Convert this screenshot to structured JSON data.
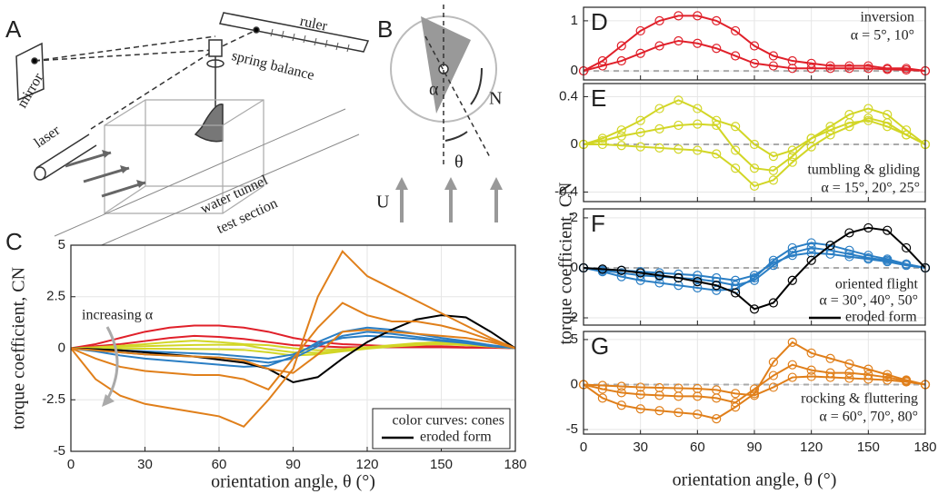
{
  "diagram": {
    "panel_A": "A",
    "panel_B": "B",
    "labels": [
      "ruler",
      "mirror",
      "spring balance",
      "laser",
      "water tunnel",
      "test section",
      "α",
      "N",
      "θ",
      "U"
    ]
  },
  "shared_y_label": "torque coefficient, CN",
  "chart_data": [
    {
      "type": "line",
      "panel": "C",
      "x_label": "orientation angle, θ (°)",
      "y_label": "torque coefficient, CN",
      "xlim": [
        0,
        180
      ],
      "xticks": [
        0,
        30,
        60,
        90,
        120,
        150,
        180
      ],
      "ylim": [
        -5,
        5
      ],
      "yticks": [
        -5,
        -2.5,
        0,
        2.5,
        5
      ],
      "grid": true,
      "annotations": [
        "increasing α"
      ],
      "legend": [
        "color curves: cones",
        "eroded form"
      ],
      "legend_position": "lower right"
    },
    {
      "type": "line",
      "panel": "D",
      "x": [
        0,
        10,
        20,
        30,
        40,
        50,
        60,
        70,
        80,
        90,
        100,
        110,
        120,
        130,
        140,
        150,
        160,
        170,
        180
      ],
      "xlim": [
        0,
        180
      ],
      "xticks": [
        0,
        30,
        60,
        90,
        120,
        150,
        180
      ],
      "show_xtick_labels": false,
      "ylim": [
        -0.18,
        1.27
      ],
      "yticks": [
        0,
        1
      ],
      "grid": true,
      "markers": true,
      "zero_line": true,
      "annotations": [
        "inversion",
        "α = 5°, 10°"
      ],
      "series": [
        {
          "color": "#e0202a",
          "values": [
            0,
            0.2,
            0.5,
            0.8,
            1.0,
            1.1,
            1.1,
            1.0,
            0.8,
            0.5,
            0.3,
            0.2,
            0.15,
            0.1,
            0.1,
            0.1,
            0.05,
            0.05,
            0
          ]
        },
        {
          "color": "#e0202a",
          "values": [
            0,
            0.1,
            0.2,
            0.35,
            0.5,
            0.6,
            0.55,
            0.45,
            0.3,
            0.15,
            0.1,
            0.05,
            0.05,
            0.05,
            0.05,
            0.05,
            0.03,
            0.02,
            0
          ]
        }
      ]
    },
    {
      "type": "line",
      "panel": "E",
      "x": [
        0,
        10,
        20,
        30,
        40,
        50,
        60,
        70,
        80,
        90,
        100,
        110,
        120,
        130,
        140,
        150,
        160,
        170,
        180
      ],
      "xlim": [
        0,
        180
      ],
      "xticks": [
        0,
        30,
        60,
        90,
        120,
        150,
        180
      ],
      "show_xtick_labels": false,
      "ylim": [
        -0.48,
        0.51
      ],
      "yticks": [
        -0.4,
        0,
        0.4
      ],
      "grid": true,
      "markers": true,
      "zero_line": true,
      "annotations": [
        "tumbling & gliding",
        "α = 15°, 20°, 25°"
      ],
      "series": [
        {
          "color": "#d2d626",
          "values": [
            0,
            0.05,
            0.12,
            0.2,
            0.3,
            0.37,
            0.3,
            0.2,
            0.15,
            0.0,
            -0.1,
            -0.05,
            0.05,
            0.15,
            0.25,
            0.3,
            0.25,
            0.12,
            0
          ]
        },
        {
          "color": "#d2d626",
          "values": [
            0,
            0.03,
            0.07,
            0.1,
            0.13,
            0.16,
            0.17,
            0.16,
            -0.05,
            -0.2,
            -0.22,
            -0.1,
            0.05,
            0.12,
            0.18,
            0.2,
            0.15,
            0.08,
            0
          ]
        },
        {
          "color": "#d2d626",
          "values": [
            0,
            0,
            -0.01,
            -0.02,
            -0.03,
            -0.04,
            -0.05,
            -0.08,
            -0.2,
            -0.35,
            -0.3,
            -0.15,
            -0.02,
            0.08,
            0.15,
            0.22,
            0.18,
            0.08,
            0
          ]
        }
      ]
    },
    {
      "type": "line",
      "panel": "F",
      "x": [
        0,
        10,
        20,
        30,
        40,
        50,
        60,
        70,
        80,
        90,
        100,
        110,
        120,
        130,
        140,
        150,
        160,
        170,
        180
      ],
      "xlim": [
        0,
        180
      ],
      "xticks": [
        0,
        30,
        60,
        90,
        120,
        150,
        180
      ],
      "show_xtick_labels": false,
      "ylim": [
        -2.29,
        2.36
      ],
      "yticks": [
        -2,
        0,
        2
      ],
      "grid": true,
      "markers": true,
      "zero_line": true,
      "annotations": [
        "oriented flight",
        "α = 30°, 40°, 50°"
      ],
      "series": [
        {
          "color": "#2a7ec4",
          "values": [
            0,
            -0.05,
            -0.1,
            -0.15,
            -0.2,
            -0.25,
            -0.3,
            -0.4,
            -0.5,
            -0.3,
            0.2,
            0.5,
            0.6,
            0.55,
            0.45,
            0.35,
            0.25,
            0.1,
            0
          ]
        },
        {
          "color": "#2a7ec4",
          "values": [
            0,
            -0.1,
            -0.2,
            -0.3,
            -0.35,
            -0.4,
            -0.45,
            -0.55,
            -0.7,
            -0.5,
            0.1,
            0.6,
            0.8,
            0.7,
            0.55,
            0.4,
            0.3,
            0.15,
            0
          ]
        },
        {
          "color": "#2a7ec4",
          "values": [
            0,
            -0.15,
            -0.35,
            -0.5,
            -0.6,
            -0.7,
            -0.8,
            -0.9,
            -0.85,
            -0.4,
            0.3,
            0.8,
            1.0,
            0.9,
            0.7,
            0.5,
            0.35,
            0.15,
            0
          ]
        },
        {
          "name": "eroded form",
          "color": "#000000",
          "values": [
            0,
            -0.05,
            -0.1,
            -0.2,
            -0.3,
            -0.4,
            -0.55,
            -0.7,
            -1.0,
            -1.65,
            -1.4,
            -0.5,
            0.3,
            0.9,
            1.4,
            1.6,
            1.5,
            0.8,
            0
          ]
        }
      ]
    },
    {
      "type": "line",
      "panel": "G",
      "x": [
        0,
        10,
        20,
        30,
        40,
        50,
        60,
        70,
        80,
        90,
        100,
        110,
        120,
        130,
        140,
        150,
        160,
        170,
        180
      ],
      "x_label": "orientation angle, θ (°)",
      "xlim": [
        0,
        180
      ],
      "xticks": [
        0,
        30,
        60,
        90,
        120,
        150,
        180
      ],
      "ylim": [
        -5.5,
        5.9
      ],
      "yticks": [
        -5,
        0,
        5
      ],
      "grid": true,
      "markers": true,
      "zero_line": true,
      "annotations": [
        "rocking & fluttering",
        "α = 60°, 70°, 80°"
      ],
      "series": [
        {
          "color": "#e07f1a",
          "values": [
            0,
            -0.1,
            -0.2,
            -0.3,
            -0.35,
            -0.4,
            -0.45,
            -0.6,
            -1.0,
            -1.2,
            -0.3,
            0.8,
            0.9,
            0.8,
            0.7,
            0.6,
            0.5,
            0.3,
            0
          ]
        },
        {
          "color": "#e07f1a",
          "values": [
            0,
            -0.5,
            -0.9,
            -1.1,
            -1.2,
            -1.3,
            -1.3,
            -1.5,
            -2.0,
            -0.5,
            1.0,
            2.2,
            1.6,
            1.3,
            1.3,
            1.1,
            0.8,
            0.4,
            0
          ]
        },
        {
          "color": "#e07f1a",
          "values": [
            0,
            -1.5,
            -2.3,
            -2.7,
            -2.9,
            -3.1,
            -3.3,
            -3.8,
            -2.5,
            -1.0,
            2.5,
            4.7,
            3.5,
            2.9,
            2.3,
            1.7,
            1.1,
            0.5,
            0
          ]
        }
      ]
    }
  ]
}
